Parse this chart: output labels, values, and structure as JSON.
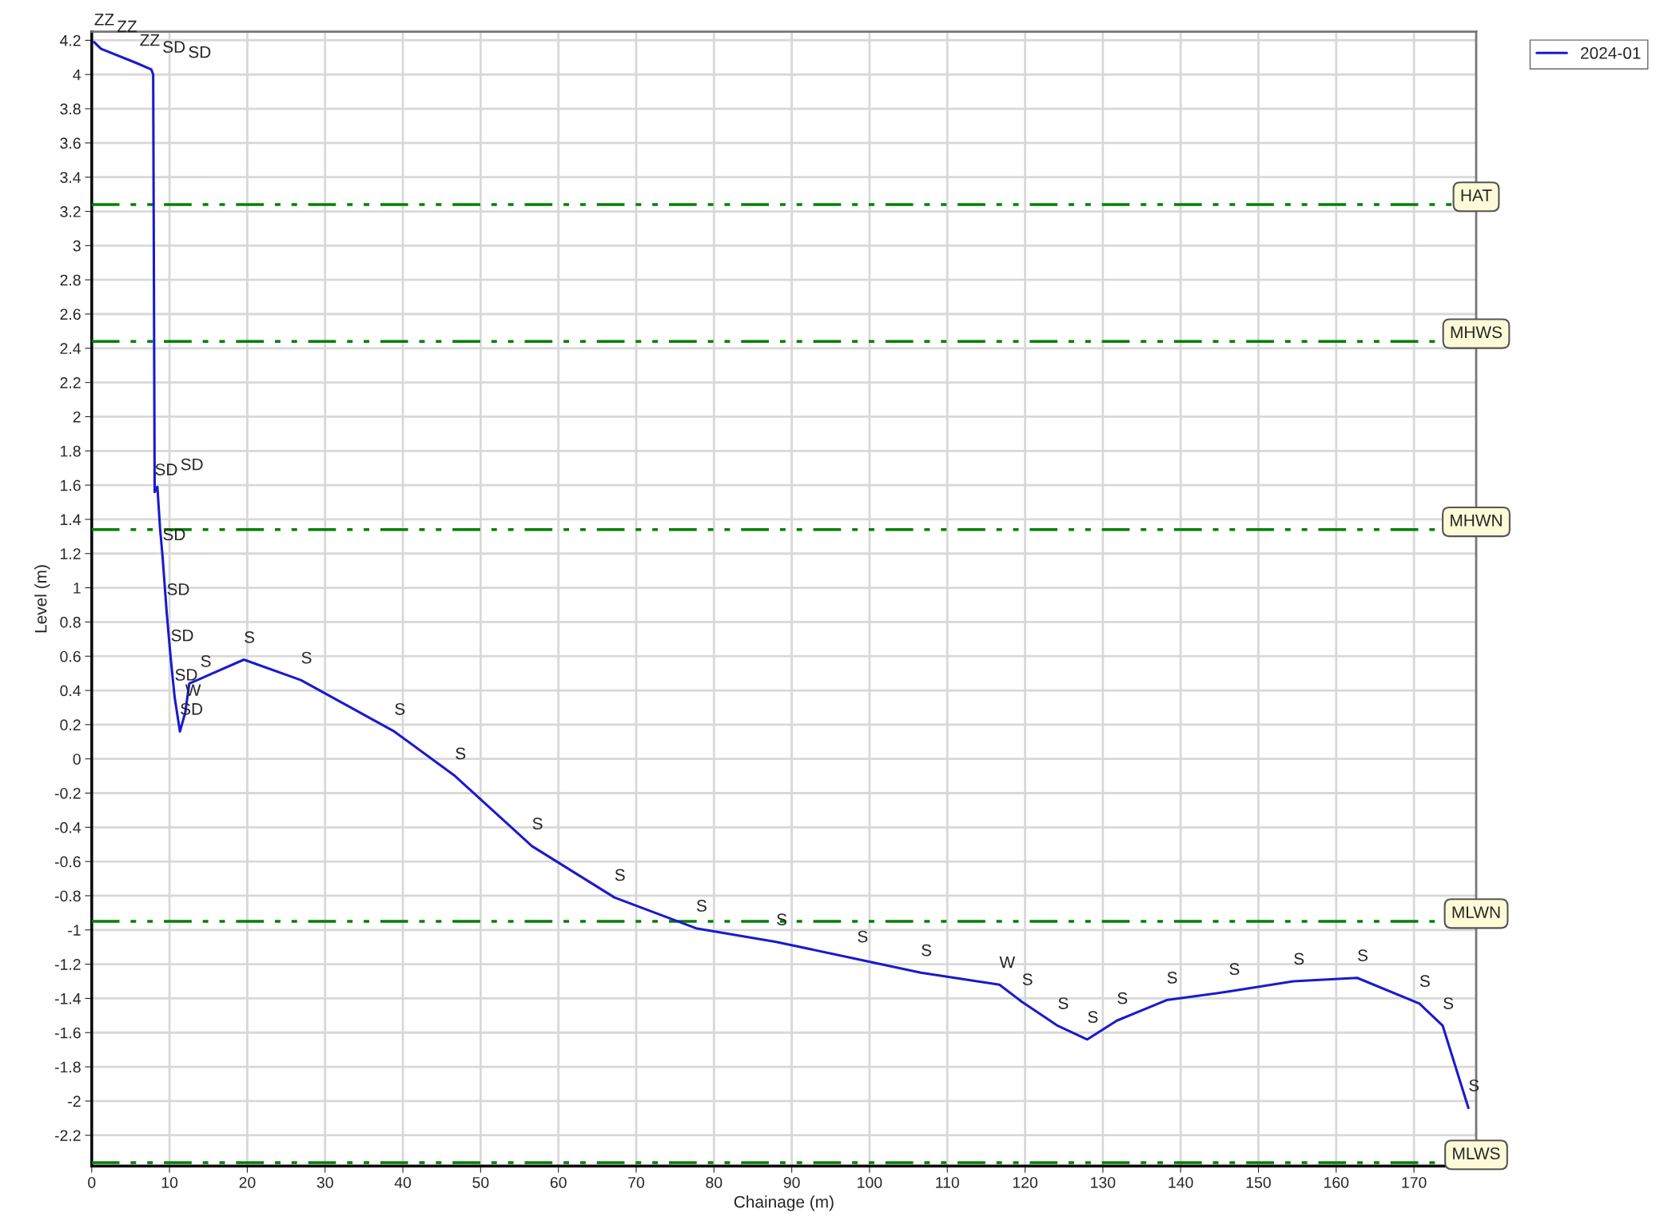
{
  "chart_data": {
    "type": "line",
    "xlabel": "Chainage (m)",
    "ylabel": "Level (m)",
    "xlim": [
      0,
      178
    ],
    "ylim": [
      -2.38,
      4.25
    ],
    "xticks": [
      0,
      10,
      20,
      30,
      40,
      50,
      60,
      70,
      80,
      90,
      100,
      110,
      120,
      130,
      140,
      150,
      160,
      170
    ],
    "yticks": [
      -2.2,
      -2,
      -1.8,
      -1.6,
      -1.4,
      -1.2,
      -1,
      -0.8,
      -0.6,
      -0.4,
      -0.2,
      0,
      0.2,
      0.4,
      0.6,
      0.8,
      1,
      1.2,
      1.4,
      1.6,
      1.8,
      2,
      2.2,
      2.4,
      2.6,
      2.8,
      3,
      3.2,
      3.4,
      3.6,
      3.8,
      4,
      4.2
    ],
    "grid": true,
    "legend": "top right",
    "marker": "none",
    "line_style": "solid",
    "series": [
      {
        "name": "2024-01",
        "color": "#1a1acc",
        "x": [
          0.3,
          1.2,
          5.6,
          7.65,
          7.9,
          8.09,
          8.44,
          8.78,
          9.11,
          9.63,
          10.15,
          10.66,
          11.34,
          12.02,
          12.54,
          19.56,
          26.9,
          38.9,
          46.7,
          56.6,
          67.2,
          77.7,
          88.0,
          98.4,
          106.6,
          116.7,
          119.6,
          124.2,
          128.0,
          131.8,
          138.2,
          146.2,
          154.5,
          162.7,
          170.7,
          173.7,
          177.0
        ],
        "values": [
          4.19,
          4.15,
          4.07,
          4.03,
          4.0,
          1.56,
          1.59,
          1.35,
          1.18,
          0.86,
          0.59,
          0.36,
          0.16,
          0.27,
          0.44,
          0.58,
          0.46,
          0.16,
          -0.1,
          -0.51,
          -0.81,
          -0.99,
          -1.07,
          -1.17,
          -1.25,
          -1.32,
          -1.42,
          -1.56,
          -1.64,
          -1.53,
          -1.41,
          -1.36,
          -1.3,
          -1.28,
          -1.43,
          -1.56,
          -2.04
        ]
      }
    ],
    "ref_lines": [
      {
        "axis": "y",
        "value": 3.24,
        "label": "HAT",
        "color": "#008000",
        "line_style": "dashed"
      },
      {
        "axis": "y",
        "value": 2.44,
        "label": "MHWS",
        "color": "#008000",
        "line_style": "dashed"
      },
      {
        "axis": "y",
        "value": 1.34,
        "label": "MHWN",
        "color": "#008000",
        "line_style": "dashed"
      },
      {
        "axis": "y",
        "value": -0.95,
        "label": "MLWN",
        "color": "#008000",
        "line_style": "dashed"
      },
      {
        "axis": "y",
        "value": -2.36,
        "label": "MLWS",
        "color": "#008000",
        "line_style": "dashed"
      }
    ],
    "annotations": [
      {
        "text": "ZZ",
        "x": 0.3,
        "y": 4.19
      },
      {
        "text": "ZZ",
        "x": 1.2,
        "y": 4.15
      },
      {
        "text": "ZZ",
        "x": 5.6,
        "y": 4.07
      },
      {
        "text": "SD",
        "x": 7.65,
        "y": 4.03
      },
      {
        "text": "SD",
        "x": 7.9,
        "y": 4.0
      },
      {
        "text": "SD",
        "x": 8.09,
        "y": 1.56
      },
      {
        "text": "SD",
        "x": 8.44,
        "y": 1.59
      },
      {
        "text": "SD",
        "x": 9.11,
        "y": 1.18
      },
      {
        "text": "SD",
        "x": 9.63,
        "y": 0.86
      },
      {
        "text": "SD",
        "x": 10.15,
        "y": 0.59
      },
      {
        "text": "SD",
        "x": 10.66,
        "y": 0.36
      },
      {
        "text": "SD",
        "x": 11.34,
        "y": 0.16
      },
      {
        "text": "W",
        "x": 12.02,
        "y": 0.27
      },
      {
        "text": "S",
        "x": 12.54,
        "y": 0.44
      },
      {
        "text": "S",
        "x": 19.56,
        "y": 0.58
      },
      {
        "text": "S",
        "x": 26.9,
        "y": 0.46
      },
      {
        "text": "S",
        "x": 38.9,
        "y": 0.16
      },
      {
        "text": "S",
        "x": 46.7,
        "y": -0.1
      },
      {
        "text": "S",
        "x": 56.6,
        "y": -0.51
      },
      {
        "text": "S",
        "x": 67.2,
        "y": -0.81
      },
      {
        "text": "S",
        "x": 77.7,
        "y": -0.99
      },
      {
        "text": "S",
        "x": 88.0,
        "y": -1.07
      },
      {
        "text": "S",
        "x": 98.4,
        "y": -1.17
      },
      {
        "text": "S",
        "x": 106.6,
        "y": -1.25
      },
      {
        "text": "W",
        "x": 116.7,
        "y": -1.32
      },
      {
        "text": "S",
        "x": 119.6,
        "y": -1.42
      },
      {
        "text": "S",
        "x": 124.2,
        "y": -1.56
      },
      {
        "text": "S",
        "x": 128.0,
        "y": -1.64
      },
      {
        "text": "S",
        "x": 131.8,
        "y": -1.53
      },
      {
        "text": "S",
        "x": 138.2,
        "y": -1.41
      },
      {
        "text": "S",
        "x": 146.2,
        "y": -1.36
      },
      {
        "text": "S",
        "x": 154.5,
        "y": -1.3
      },
      {
        "text": "S",
        "x": 162.7,
        "y": -1.28
      },
      {
        "text": "S",
        "x": 170.7,
        "y": -1.43
      },
      {
        "text": "S",
        "x": 173.7,
        "y": -1.56
      },
      {
        "text": "S",
        "x": 177.0,
        "y": -2.04
      }
    ]
  }
}
